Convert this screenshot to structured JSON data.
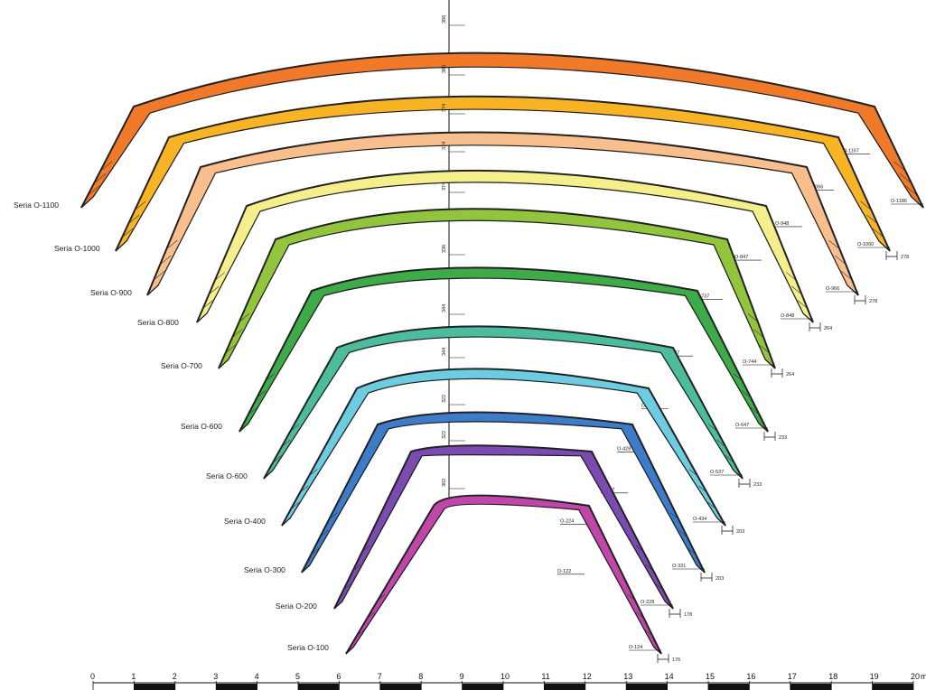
{
  "arches": [
    {
      "series": "Seria O-1100",
      "color": "#f07a2a",
      "top_dim": "386",
      "mid_dim": "O-1167",
      "base_dim": "O-1186",
      "foot_dim": ""
    },
    {
      "series": "Seria O-1000",
      "color": "#f9b426",
      "top_dim": "386",
      "mid_dim": "O-1066",
      "base_dim": "O-1060",
      "foot_dim": "278"
    },
    {
      "series": "Seria O-900",
      "color": "#f8be8c",
      "top_dim": "374",
      "mid_dim": "O-948",
      "base_dim": "O-966",
      "foot_dim": "278"
    },
    {
      "series": "Seria O-800",
      "color": "#f4ef8a",
      "top_dim": "374",
      "mid_dim": "O-847",
      "base_dim": "O-848",
      "foot_dim": "264"
    },
    {
      "series": "Seria O-700",
      "color": "#92c43e",
      "top_dim": "374",
      "mid_dim": "O-737",
      "base_dim": "O-744",
      "foot_dim": "264"
    },
    {
      "series": "Seria O-600",
      "color": "#3cab48",
      "top_dim": "336",
      "mid_dim": "O-637",
      "base_dim": "O-647",
      "foot_dim": "233"
    },
    {
      "series": "Seria O-600",
      "color": "#4bbd9c",
      "top_dim": "344",
      "mid_dim": "O-628",
      "base_dim": "O-537",
      "foot_dim": "233"
    },
    {
      "series": "Seria O-400",
      "color": "#6ccde0",
      "top_dim": "344",
      "mid_dim": "O-428",
      "base_dim": "O-434",
      "foot_dim": "203"
    },
    {
      "series": "Seria O-300",
      "color": "#3d7cc8",
      "top_dim": "322",
      "mid_dim": "O-327",
      "base_dim": "O-331",
      "foot_dim": "203"
    },
    {
      "series": "Seria O-200",
      "color": "#7a4bb0",
      "top_dim": "322",
      "mid_dim": "O-224",
      "base_dim": "O-228",
      "foot_dim": "178"
    },
    {
      "series": "Seria O-100",
      "color": "#c046aa",
      "top_dim": "302",
      "mid_dim": "O-122",
      "base_dim": "O-124",
      "foot_dim": "176"
    }
  ],
  "scale": {
    "ticks": [
      "0",
      "1",
      "2",
      "3",
      "4",
      "5",
      "6",
      "7",
      "8",
      "9",
      "10",
      "11",
      "12",
      "13",
      "14",
      "15",
      "16",
      "17",
      "18",
      "19",
      "20"
    ],
    "unit": "m"
  }
}
